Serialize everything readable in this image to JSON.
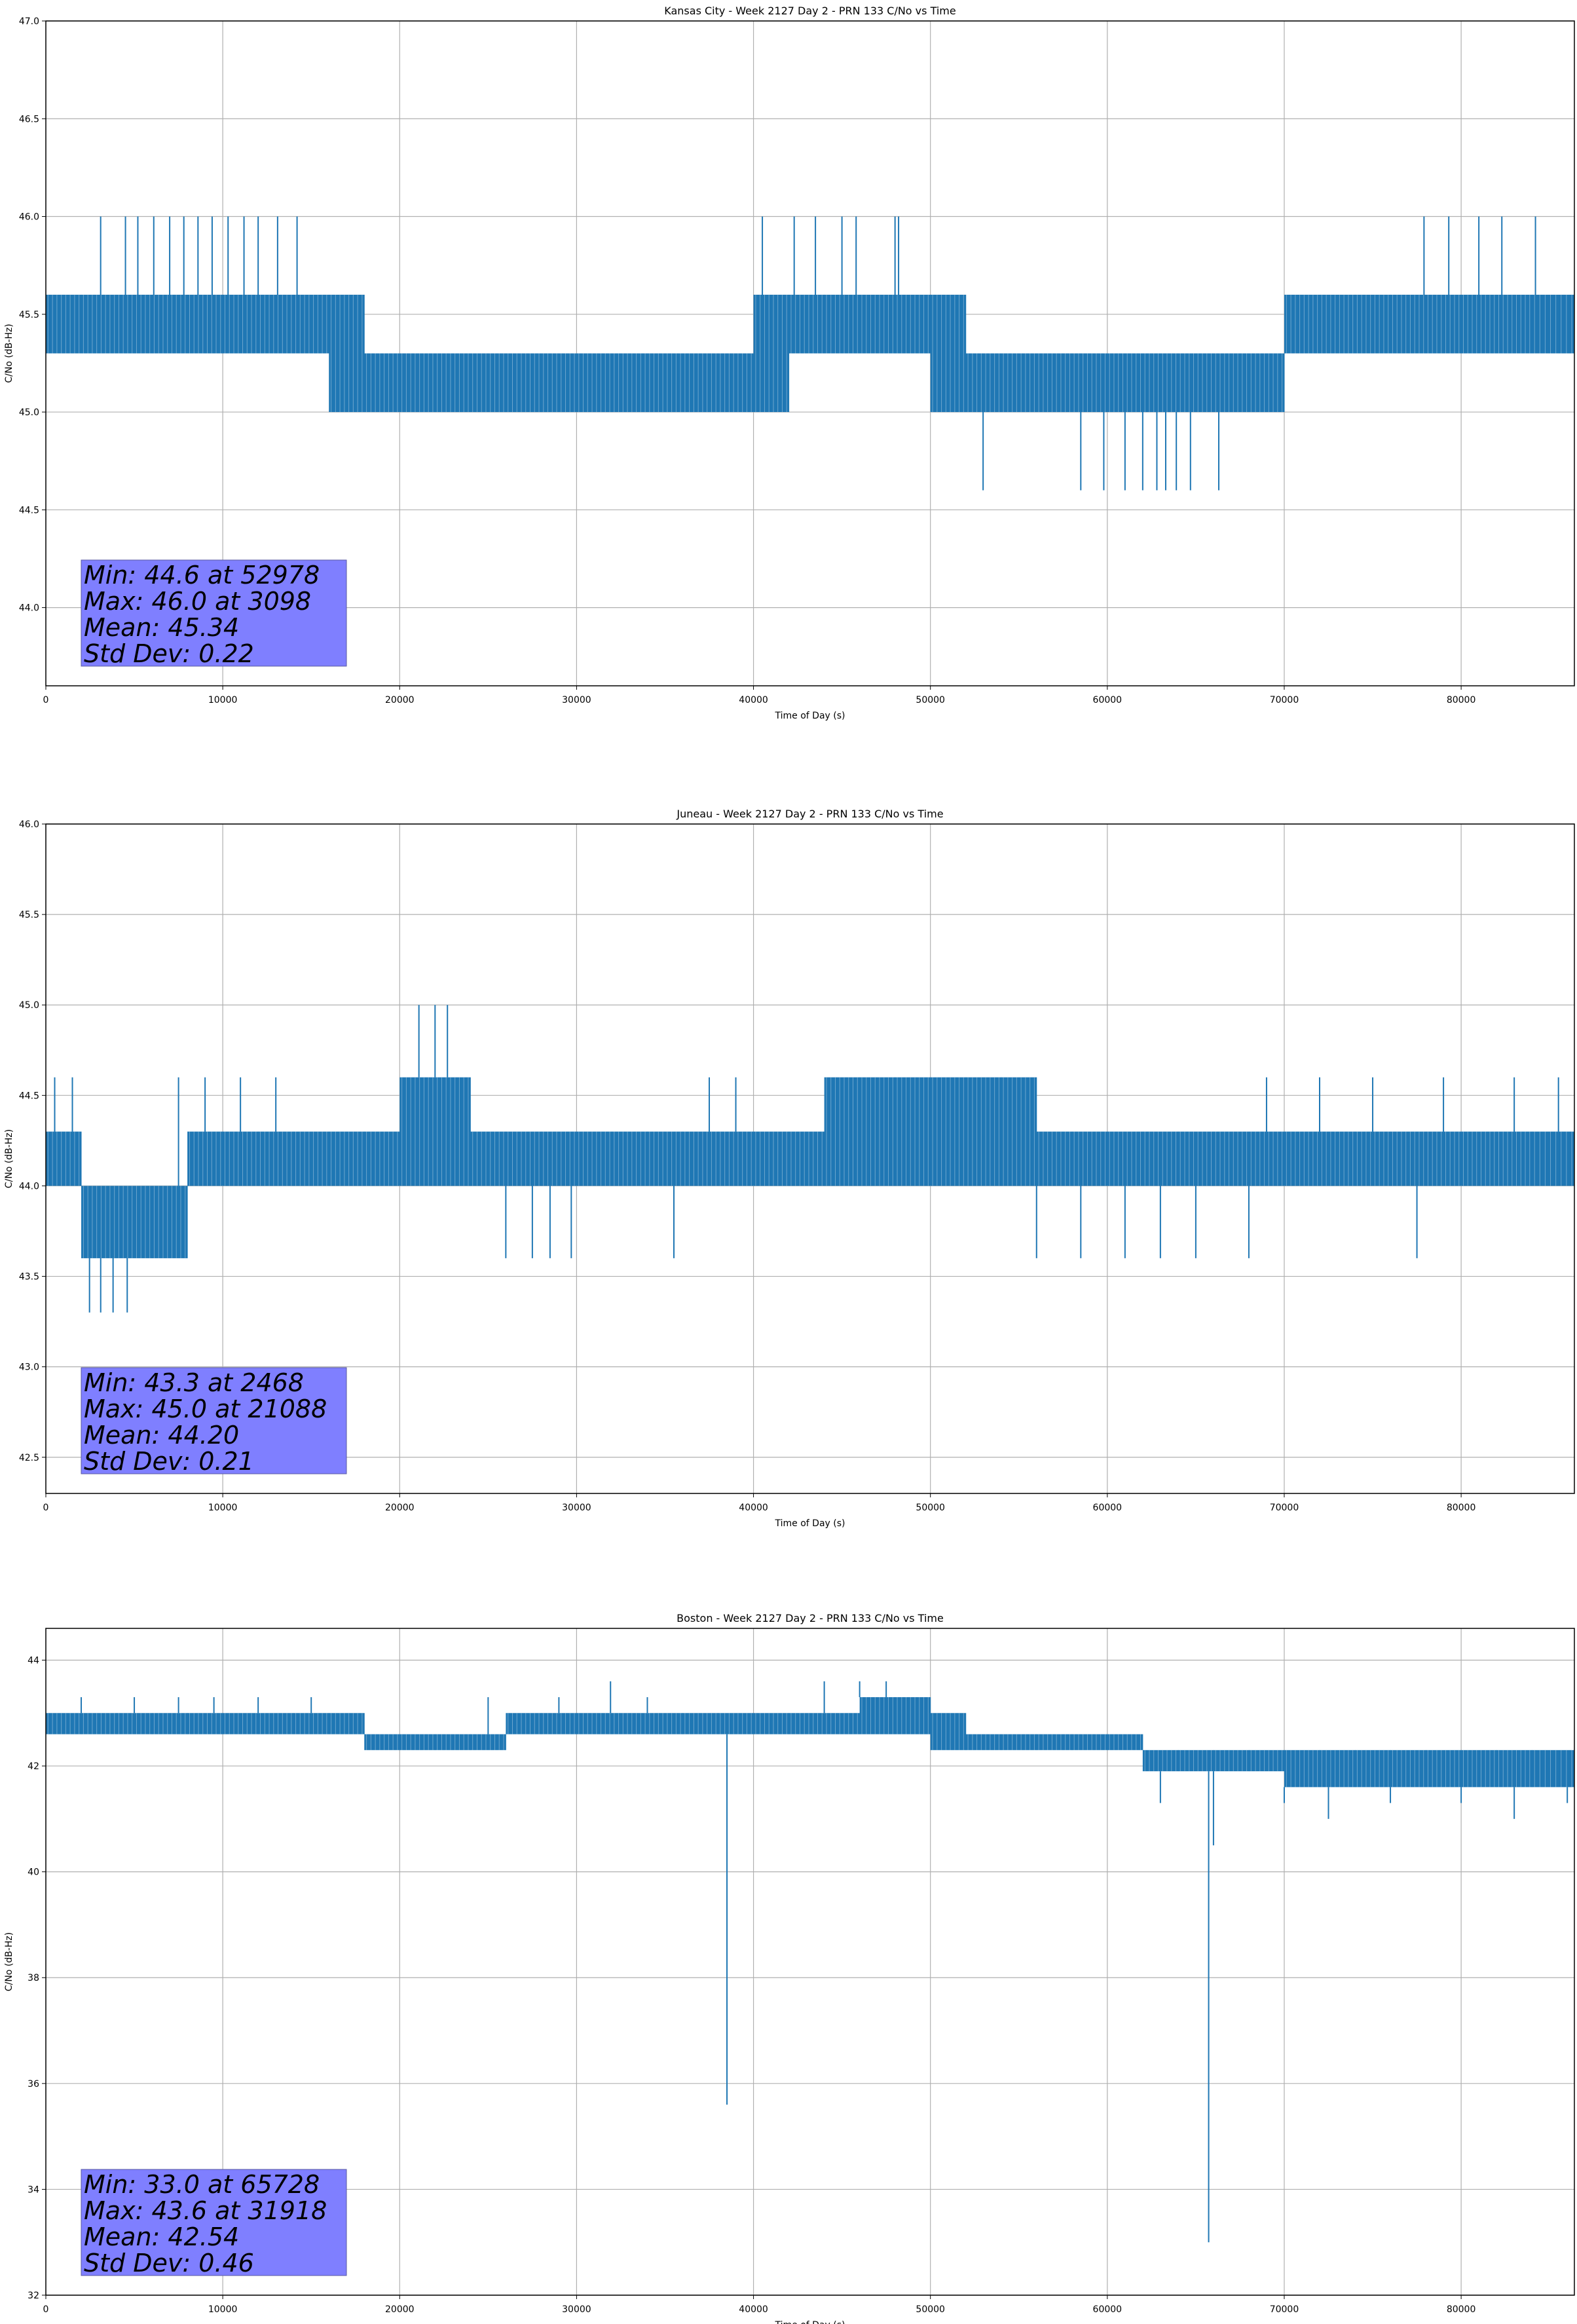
{
  "chart_data": [
    {
      "type": "line",
      "title": "Kansas City - Week 2127 Day 2 - PRN 133 C/No vs Time",
      "xlabel": "Time of Day (s)",
      "ylabel": "C/No (dB-Hz)",
      "xlim": [
        0,
        86400
      ],
      "ylim": [
        43.6,
        47.0
      ],
      "xticks": [
        0,
        10000,
        20000,
        30000,
        40000,
        50000,
        60000,
        70000,
        80000
      ],
      "yticks": [
        44.0,
        44.5,
        45.0,
        45.5,
        46.0,
        46.5,
        47.0
      ],
      "ytick_labels": [
        "44.0",
        "44.5",
        "45.0",
        "45.5",
        "46.0",
        "46.5",
        "47.0"
      ],
      "grid": true,
      "line_color": "#1f77b4",
      "stats": [
        "Min: 44.6 at 52978",
        "Max: 46.0 at 3098",
        "Mean: 45.34",
        "Std Dev: 0.22"
      ],
      "series": [
        {
          "x": [
            0,
            2000,
            4000,
            6000,
            8000,
            10000,
            12000,
            14000,
            16000,
            18000,
            20000,
            22000,
            24000,
            26000,
            28000,
            30000,
            32000,
            34000,
            36000,
            38000,
            40000,
            42000,
            44000,
            46000,
            48000,
            50000,
            52000,
            54000,
            56000,
            58000,
            60000,
            62000,
            64000,
            66000,
            68000,
            70000,
            72000,
            74000,
            76000,
            78000,
            80000,
            82000,
            84000,
            86400
          ],
          "band_low": [
            45.3,
            45.3,
            45.3,
            45.3,
            45.3,
            45.3,
            45.3,
            45.3,
            45.0,
            45.0,
            45.0,
            45.0,
            45.0,
            45.0,
            45.0,
            45.0,
            45.0,
            45.0,
            45.0,
            45.0,
            45.0,
            45.3,
            45.3,
            45.3,
            45.3,
            45.0,
            45.0,
            45.0,
            45.0,
            45.0,
            45.0,
            45.0,
            45.0,
            45.0,
            45.0,
            45.3,
            45.3,
            45.3,
            45.3,
            45.3,
            45.3,
            45.3,
            45.3,
            45.3
          ],
          "band_high": [
            45.6,
            45.6,
            45.6,
            45.6,
            45.6,
            45.6,
            45.6,
            45.6,
            45.6,
            45.3,
            45.3,
            45.3,
            45.3,
            45.3,
            45.3,
            45.3,
            45.3,
            45.3,
            45.3,
            45.3,
            45.6,
            45.6,
            45.6,
            45.6,
            45.6,
            45.6,
            45.3,
            45.3,
            45.3,
            45.3,
            45.3,
            45.3,
            45.3,
            45.3,
            45.3,
            45.6,
            45.6,
            45.6,
            45.6,
            45.6,
            45.6,
            45.6,
            45.6,
            45.6
          ],
          "spikes": [
            [
              3098,
              46.0
            ],
            [
              4500,
              46.0
            ],
            [
              5200,
              46.0
            ],
            [
              6100,
              46.0
            ],
            [
              7000,
              46.0
            ],
            [
              7800,
              46.0
            ],
            [
              8600,
              46.0
            ],
            [
              9400,
              46.0
            ],
            [
              10300,
              46.0
            ],
            [
              11200,
              46.0
            ],
            [
              12000,
              46.0
            ],
            [
              13100,
              46.0
            ],
            [
              14200,
              46.0
            ],
            [
              40500,
              46.0
            ],
            [
              42300,
              46.0
            ],
            [
              43500,
              46.0
            ],
            [
              45000,
              46.0
            ],
            [
              45800,
              46.0
            ],
            [
              48000,
              46.0
            ],
            [
              48200,
              46.0
            ],
            [
              52978,
              44.6
            ],
            [
              58500,
              44.6
            ],
            [
              59800,
              44.6
            ],
            [
              61000,
              44.6
            ],
            [
              62000,
              44.6
            ],
            [
              62800,
              44.6
            ],
            [
              63300,
              44.6
            ],
            [
              63900,
              44.6
            ],
            [
              64700,
              44.6
            ],
            [
              66300,
              44.6
            ],
            [
              77900,
              46.0
            ],
            [
              79300,
              46.0
            ],
            [
              81000,
              46.0
            ],
            [
              82300,
              46.0
            ],
            [
              84200,
              46.0
            ]
          ]
        }
      ]
    },
    {
      "type": "line",
      "title": "Juneau - Week 2127 Day 2 - PRN 133 C/No vs Time",
      "xlabel": "Time of Day (s)",
      "ylabel": "C/No (dB-Hz)",
      "xlim": [
        0,
        86400
      ],
      "ylim": [
        42.3,
        46.0
      ],
      "xticks": [
        0,
        10000,
        20000,
        30000,
        40000,
        50000,
        60000,
        70000,
        80000
      ],
      "yticks": [
        42.5,
        43.0,
        43.5,
        44.0,
        44.5,
        45.0,
        45.5,
        46.0
      ],
      "ytick_labels": [
        "42.5",
        "43.0",
        "43.5",
        "44.0",
        "44.5",
        "45.0",
        "45.5",
        "46.0"
      ],
      "grid": true,
      "line_color": "#1f77b4",
      "stats": [
        "Min: 43.3 at 2468",
        "Max: 45.0 at 21088",
        "Mean: 44.20",
        "Std Dev: 0.21"
      ],
      "series": [
        {
          "x": [
            0,
            2000,
            4000,
            6000,
            8000,
            10000,
            12000,
            14000,
            16000,
            18000,
            20000,
            22000,
            24000,
            26000,
            28000,
            30000,
            32000,
            34000,
            36000,
            38000,
            40000,
            42000,
            44000,
            46000,
            48000,
            50000,
            52000,
            54000,
            56000,
            58000,
            60000,
            62000,
            64000,
            66000,
            68000,
            70000,
            72000,
            74000,
            76000,
            78000,
            80000,
            82000,
            84000,
            86400
          ],
          "band_low": [
            44.0,
            43.6,
            43.6,
            43.6,
            44.0,
            44.0,
            44.0,
            44.0,
            44.0,
            44.0,
            44.0,
            44.0,
            44.0,
            44.0,
            44.0,
            44.0,
            44.0,
            44.0,
            44.0,
            44.0,
            44.0,
            44.0,
            44.0,
            44.0,
            44.0,
            44.0,
            44.0,
            44.0,
            44.0,
            44.0,
            44.0,
            44.0,
            44.0,
            44.0,
            44.0,
            44.0,
            44.0,
            44.0,
            44.0,
            44.0,
            44.0,
            44.0,
            44.0,
            44.0
          ],
          "band_high": [
            44.3,
            44.0,
            44.0,
            44.0,
            44.3,
            44.3,
            44.3,
            44.3,
            44.3,
            44.3,
            44.6,
            44.6,
            44.3,
            44.3,
            44.3,
            44.3,
            44.3,
            44.3,
            44.3,
            44.3,
            44.3,
            44.3,
            44.6,
            44.6,
            44.6,
            44.6,
            44.6,
            44.6,
            44.3,
            44.3,
            44.3,
            44.3,
            44.3,
            44.3,
            44.3,
            44.3,
            44.3,
            44.3,
            44.3,
            44.3,
            44.3,
            44.3,
            44.3,
            44.6
          ],
          "spikes": [
            [
              500,
              44.6
            ],
            [
              1500,
              44.6
            ],
            [
              2468,
              43.3
            ],
            [
              3100,
              43.3
            ],
            [
              3800,
              43.3
            ],
            [
              4600,
              43.3
            ],
            [
              7500,
              44.6
            ],
            [
              9000,
              44.6
            ],
            [
              11000,
              44.6
            ],
            [
              13000,
              44.6
            ],
            [
              21088,
              45.0
            ],
            [
              22000,
              45.0
            ],
            [
              22700,
              45.0
            ],
            [
              26000,
              43.6
            ],
            [
              27500,
              43.6
            ],
            [
              28500,
              43.6
            ],
            [
              29700,
              43.6
            ],
            [
              35500,
              43.6
            ],
            [
              37500,
              44.6
            ],
            [
              39000,
              44.6
            ],
            [
              56000,
              43.6
            ],
            [
              58500,
              43.6
            ],
            [
              61000,
              43.6
            ],
            [
              63000,
              43.6
            ],
            [
              65000,
              43.6
            ],
            [
              68000,
              43.6
            ],
            [
              69000,
              44.6
            ],
            [
              72000,
              44.6
            ],
            [
              75000,
              44.6
            ],
            [
              77500,
              43.6
            ],
            [
              79000,
              44.6
            ],
            [
              83000,
              44.6
            ],
            [
              85500,
              44.6
            ]
          ]
        }
      ]
    },
    {
      "type": "line",
      "title": "Boston - Week 2127 Day 2 - PRN 133 C/No vs Time",
      "xlabel": "Time of Day (s)",
      "ylabel": "C/No (dB-Hz)",
      "xlim": [
        0,
        86400
      ],
      "ylim": [
        32.0,
        44.6
      ],
      "xticks": [
        0,
        10000,
        20000,
        30000,
        40000,
        50000,
        60000,
        70000,
        80000
      ],
      "yticks": [
        32,
        34,
        36,
        38,
        40,
        42,
        44
      ],
      "ytick_labels": [
        "32",
        "34",
        "36",
        "38",
        "40",
        "42",
        "44"
      ],
      "grid": true,
      "line_color": "#1f77b4",
      "stats": [
        "Min: 33.0 at 65728",
        "Max: 43.6 at 31918",
        "Mean: 42.54",
        "Std Dev: 0.46"
      ],
      "series": [
        {
          "x": [
            0,
            2000,
            4000,
            6000,
            8000,
            10000,
            12000,
            14000,
            16000,
            18000,
            20000,
            22000,
            24000,
            26000,
            28000,
            30000,
            32000,
            34000,
            36000,
            38000,
            40000,
            42000,
            44000,
            46000,
            48000,
            50000,
            52000,
            54000,
            56000,
            58000,
            60000,
            62000,
            64000,
            66000,
            68000,
            70000,
            72000,
            74000,
            76000,
            78000,
            80000,
            82000,
            84000,
            86400
          ],
          "band_low": [
            42.6,
            42.6,
            42.6,
            42.6,
            42.6,
            42.6,
            42.6,
            42.6,
            42.6,
            42.3,
            42.3,
            42.3,
            42.3,
            42.6,
            42.6,
            42.6,
            42.6,
            42.6,
            42.6,
            42.6,
            42.6,
            42.6,
            42.6,
            42.6,
            42.6,
            42.3,
            42.3,
            42.3,
            42.3,
            42.3,
            42.3,
            41.9,
            41.9,
            41.9,
            41.9,
            41.6,
            41.6,
            41.6,
            41.6,
            41.6,
            41.6,
            41.6,
            41.6,
            41.6
          ],
          "band_high": [
            43.0,
            43.0,
            43.0,
            43.0,
            43.0,
            43.0,
            43.0,
            43.0,
            43.0,
            42.6,
            42.6,
            42.6,
            42.6,
            43.0,
            43.0,
            43.0,
            43.0,
            43.0,
            43.0,
            43.0,
            43.0,
            43.0,
            43.0,
            43.3,
            43.3,
            43.0,
            42.6,
            42.6,
            42.6,
            42.6,
            42.6,
            42.3,
            42.3,
            42.3,
            42.3,
            42.3,
            42.3,
            42.3,
            42.3,
            42.3,
            42.3,
            42.3,
            42.3,
            42.3
          ],
          "spikes": [
            [
              2000,
              43.3
            ],
            [
              5000,
              43.3
            ],
            [
              7500,
              43.3
            ],
            [
              9500,
              43.3
            ],
            [
              12000,
              43.3
            ],
            [
              15000,
              43.3
            ],
            [
              25000,
              43.3
            ],
            [
              29000,
              43.3
            ],
            [
              31918,
              43.6
            ],
            [
              34000,
              43.3
            ],
            [
              38500,
              35.6
            ],
            [
              44000,
              43.6
            ],
            [
              46000,
              43.6
            ],
            [
              47500,
              43.6
            ],
            [
              63000,
              41.3
            ],
            [
              65728,
              33.0
            ],
            [
              66000,
              40.5
            ],
            [
              70000,
              41.3
            ],
            [
              72500,
              41.0
            ],
            [
              76000,
              41.3
            ],
            [
              80000,
              41.3
            ],
            [
              83000,
              41.0
            ],
            [
              86000,
              41.3
            ]
          ]
        }
      ]
    }
  ]
}
